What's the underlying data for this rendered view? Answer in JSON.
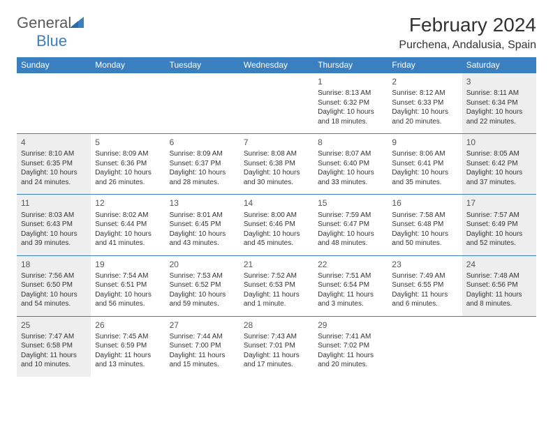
{
  "logo": {
    "text1": "General",
    "text2": "Blue"
  },
  "title": "February 2024",
  "location": "Purchena, Andalusia, Spain",
  "colors": {
    "header_bg": "#3a7fc0",
    "header_text": "#ffffff",
    "shaded_bg": "#eeeeee",
    "text": "#333333",
    "logo_gray": "#5a5a5a",
    "logo_blue": "#3a7fc0"
  },
  "day_headers": [
    "Sunday",
    "Monday",
    "Tuesday",
    "Wednesday",
    "Thursday",
    "Friday",
    "Saturday"
  ],
  "weeks": [
    [
      {
        "empty": true
      },
      {
        "empty": true
      },
      {
        "empty": true
      },
      {
        "empty": true
      },
      {
        "day": "1",
        "sunrise": "Sunrise: 8:13 AM",
        "sunset": "Sunset: 6:32 PM",
        "daylight1": "Daylight: 10 hours",
        "daylight2": "and 18 minutes."
      },
      {
        "day": "2",
        "sunrise": "Sunrise: 8:12 AM",
        "sunset": "Sunset: 6:33 PM",
        "daylight1": "Daylight: 10 hours",
        "daylight2": "and 20 minutes."
      },
      {
        "day": "3",
        "shaded": true,
        "sunrise": "Sunrise: 8:11 AM",
        "sunset": "Sunset: 6:34 PM",
        "daylight1": "Daylight: 10 hours",
        "daylight2": "and 22 minutes."
      }
    ],
    [
      {
        "day": "4",
        "shaded": true,
        "sunrise": "Sunrise: 8:10 AM",
        "sunset": "Sunset: 6:35 PM",
        "daylight1": "Daylight: 10 hours",
        "daylight2": "and 24 minutes."
      },
      {
        "day": "5",
        "sunrise": "Sunrise: 8:09 AM",
        "sunset": "Sunset: 6:36 PM",
        "daylight1": "Daylight: 10 hours",
        "daylight2": "and 26 minutes."
      },
      {
        "day": "6",
        "sunrise": "Sunrise: 8:09 AM",
        "sunset": "Sunset: 6:37 PM",
        "daylight1": "Daylight: 10 hours",
        "daylight2": "and 28 minutes."
      },
      {
        "day": "7",
        "sunrise": "Sunrise: 8:08 AM",
        "sunset": "Sunset: 6:38 PM",
        "daylight1": "Daylight: 10 hours",
        "daylight2": "and 30 minutes."
      },
      {
        "day": "8",
        "sunrise": "Sunrise: 8:07 AM",
        "sunset": "Sunset: 6:40 PM",
        "daylight1": "Daylight: 10 hours",
        "daylight2": "and 33 minutes."
      },
      {
        "day": "9",
        "sunrise": "Sunrise: 8:06 AM",
        "sunset": "Sunset: 6:41 PM",
        "daylight1": "Daylight: 10 hours",
        "daylight2": "and 35 minutes."
      },
      {
        "day": "10",
        "shaded": true,
        "sunrise": "Sunrise: 8:05 AM",
        "sunset": "Sunset: 6:42 PM",
        "daylight1": "Daylight: 10 hours",
        "daylight2": "and 37 minutes."
      }
    ],
    [
      {
        "day": "11",
        "shaded": true,
        "sunrise": "Sunrise: 8:03 AM",
        "sunset": "Sunset: 6:43 PM",
        "daylight1": "Daylight: 10 hours",
        "daylight2": "and 39 minutes."
      },
      {
        "day": "12",
        "sunrise": "Sunrise: 8:02 AM",
        "sunset": "Sunset: 6:44 PM",
        "daylight1": "Daylight: 10 hours",
        "daylight2": "and 41 minutes."
      },
      {
        "day": "13",
        "sunrise": "Sunrise: 8:01 AM",
        "sunset": "Sunset: 6:45 PM",
        "daylight1": "Daylight: 10 hours",
        "daylight2": "and 43 minutes."
      },
      {
        "day": "14",
        "sunrise": "Sunrise: 8:00 AM",
        "sunset": "Sunset: 6:46 PM",
        "daylight1": "Daylight: 10 hours",
        "daylight2": "and 45 minutes."
      },
      {
        "day": "15",
        "sunrise": "Sunrise: 7:59 AM",
        "sunset": "Sunset: 6:47 PM",
        "daylight1": "Daylight: 10 hours",
        "daylight2": "and 48 minutes."
      },
      {
        "day": "16",
        "sunrise": "Sunrise: 7:58 AM",
        "sunset": "Sunset: 6:48 PM",
        "daylight1": "Daylight: 10 hours",
        "daylight2": "and 50 minutes."
      },
      {
        "day": "17",
        "shaded": true,
        "sunrise": "Sunrise: 7:57 AM",
        "sunset": "Sunset: 6:49 PM",
        "daylight1": "Daylight: 10 hours",
        "daylight2": "and 52 minutes."
      }
    ],
    [
      {
        "day": "18",
        "shaded": true,
        "sunrise": "Sunrise: 7:56 AM",
        "sunset": "Sunset: 6:50 PM",
        "daylight1": "Daylight: 10 hours",
        "daylight2": "and 54 minutes."
      },
      {
        "day": "19",
        "sunrise": "Sunrise: 7:54 AM",
        "sunset": "Sunset: 6:51 PM",
        "daylight1": "Daylight: 10 hours",
        "daylight2": "and 56 minutes."
      },
      {
        "day": "20",
        "sunrise": "Sunrise: 7:53 AM",
        "sunset": "Sunset: 6:52 PM",
        "daylight1": "Daylight: 10 hours",
        "daylight2": "and 59 minutes."
      },
      {
        "day": "21",
        "sunrise": "Sunrise: 7:52 AM",
        "sunset": "Sunset: 6:53 PM",
        "daylight1": "Daylight: 11 hours",
        "daylight2": "and 1 minute."
      },
      {
        "day": "22",
        "sunrise": "Sunrise: 7:51 AM",
        "sunset": "Sunset: 6:54 PM",
        "daylight1": "Daylight: 11 hours",
        "daylight2": "and 3 minutes."
      },
      {
        "day": "23",
        "sunrise": "Sunrise: 7:49 AM",
        "sunset": "Sunset: 6:55 PM",
        "daylight1": "Daylight: 11 hours",
        "daylight2": "and 6 minutes."
      },
      {
        "day": "24",
        "shaded": true,
        "sunrise": "Sunrise: 7:48 AM",
        "sunset": "Sunset: 6:56 PM",
        "daylight1": "Daylight: 11 hours",
        "daylight2": "and 8 minutes."
      }
    ],
    [
      {
        "day": "25",
        "shaded": true,
        "sunrise": "Sunrise: 7:47 AM",
        "sunset": "Sunset: 6:58 PM",
        "daylight1": "Daylight: 11 hours",
        "daylight2": "and 10 minutes."
      },
      {
        "day": "26",
        "sunrise": "Sunrise: 7:45 AM",
        "sunset": "Sunset: 6:59 PM",
        "daylight1": "Daylight: 11 hours",
        "daylight2": "and 13 minutes."
      },
      {
        "day": "27",
        "sunrise": "Sunrise: 7:44 AM",
        "sunset": "Sunset: 7:00 PM",
        "daylight1": "Daylight: 11 hours",
        "daylight2": "and 15 minutes."
      },
      {
        "day": "28",
        "sunrise": "Sunrise: 7:43 AM",
        "sunset": "Sunset: 7:01 PM",
        "daylight1": "Daylight: 11 hours",
        "daylight2": "and 17 minutes."
      },
      {
        "day": "29",
        "sunrise": "Sunrise: 7:41 AM",
        "sunset": "Sunset: 7:02 PM",
        "daylight1": "Daylight: 11 hours",
        "daylight2": "and 20 minutes."
      },
      {
        "empty": true
      },
      {
        "empty": true
      }
    ]
  ]
}
